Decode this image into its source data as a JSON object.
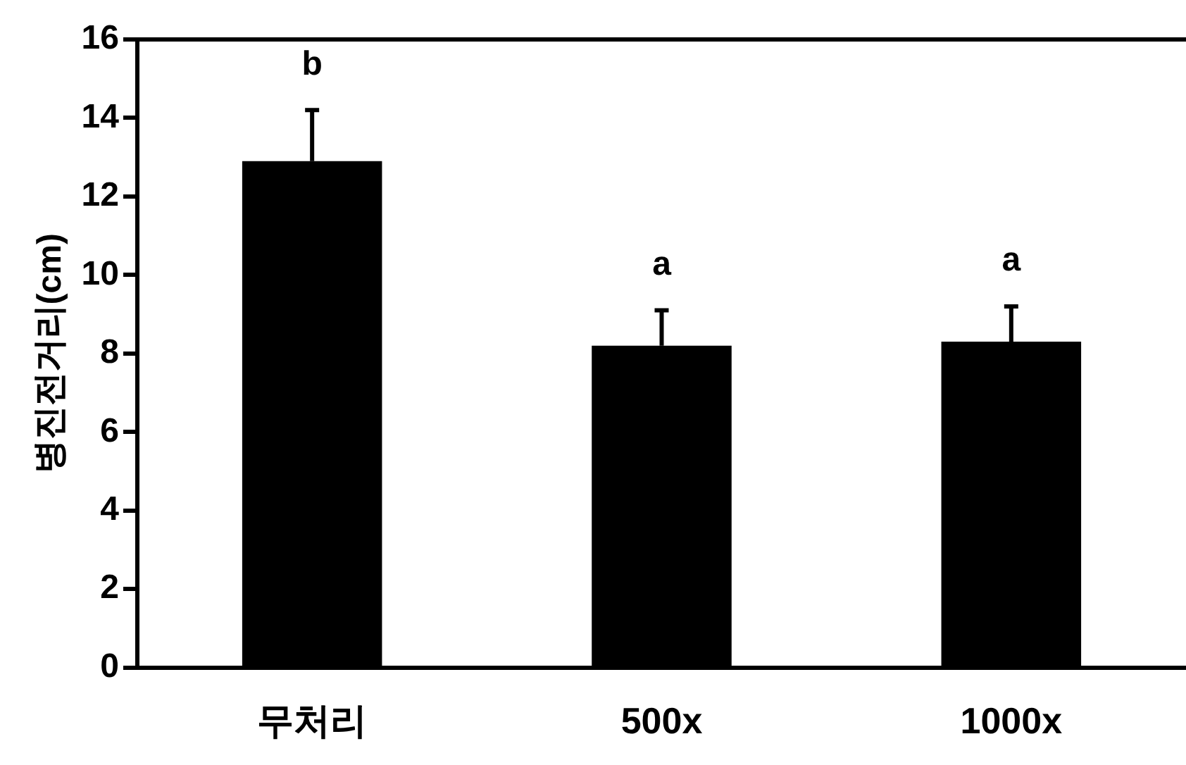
{
  "chart_data": {
    "type": "bar",
    "ylabel": "병진전거리(cm)",
    "categories": [
      "무처리",
      "500x",
      "1000x"
    ],
    "values": [
      12.9,
      8.2,
      8.3
    ],
    "errors": [
      [
        12.9,
        14.2
      ],
      [
        8.2,
        9.1
      ],
      [
        8.3,
        9.2
      ]
    ],
    "color": "#000000",
    "ylim": [
      0,
      16
    ],
    "yticks": [
      0,
      2,
      4,
      6,
      8,
      10,
      12,
      14,
      16
    ],
    "grid": false,
    "legend": false,
    "annotations": [
      "b",
      "a",
      "a"
    ]
  }
}
